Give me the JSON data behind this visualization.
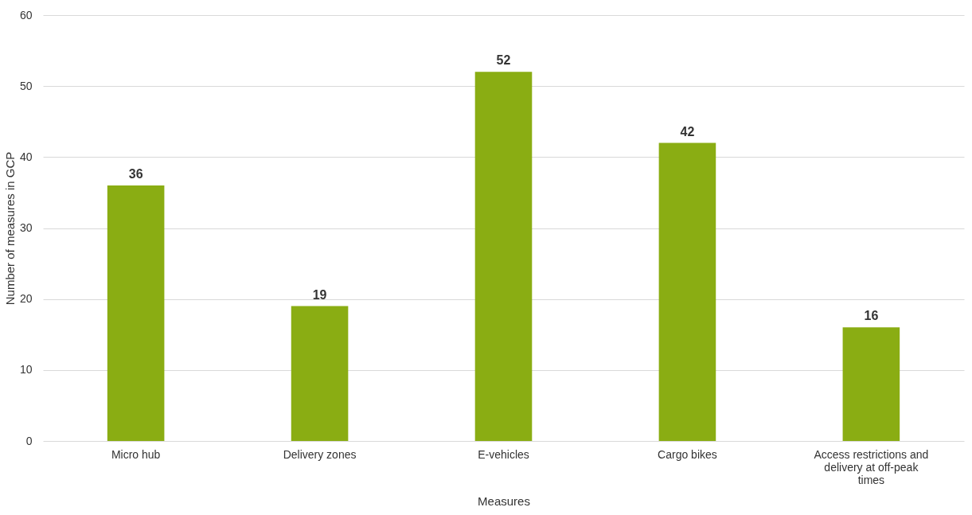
{
  "chart_data": {
    "type": "bar",
    "xlabel": "Measures",
    "ylabel": "Number of measures in GCP",
    "categories": [
      "Micro hub",
      "Delivery zones",
      "E-vehicles",
      "Cargo bikes",
      "Access restrictions and delivery at off-peak times"
    ],
    "values": [
      36,
      19,
      52,
      42,
      16
    ],
    "color": "#8aad13",
    "ylim": [
      0,
      60
    ],
    "yticks": [
      0,
      10,
      20,
      30,
      40,
      50,
      60
    ],
    "grid": "y",
    "data_labels": true
  }
}
